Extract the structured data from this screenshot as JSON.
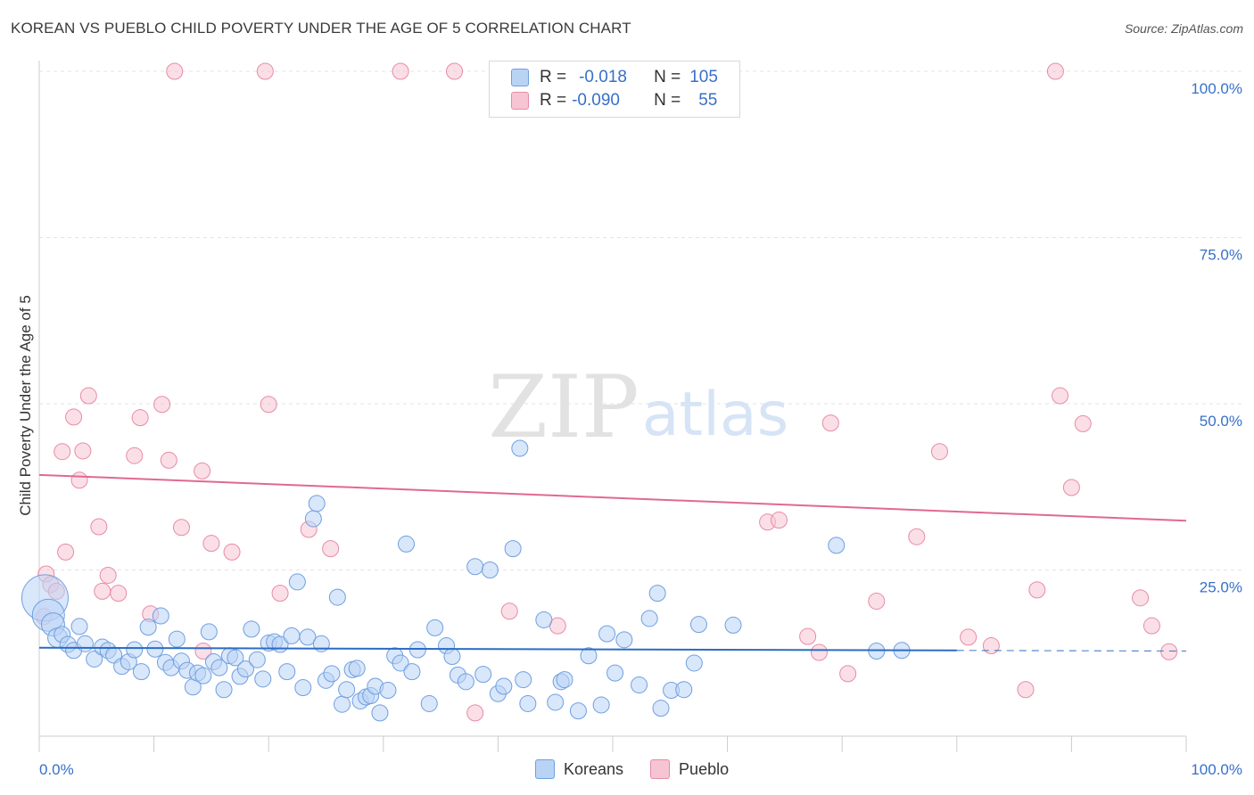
{
  "title": "KOREAN VS PUEBLO CHILD POVERTY UNDER THE AGE OF 5 CORRELATION CHART",
  "source": "Source: ZipAtlas.com",
  "watermark": {
    "zip": "ZIP",
    "atlas": "atlas"
  },
  "legend": {
    "r_label": "R =",
    "n_label": "N =",
    "rows": [
      {
        "r": "-0.018",
        "n": "105"
      },
      {
        "r": "-0.090",
        "n": "55"
      }
    ]
  },
  "bottom_legend": [
    "Koreans",
    "Pueblo"
  ],
  "colors": {
    "korean_fill": "#b9d3f5",
    "korean_stroke": "#6f9fe0",
    "korean_line": "#2b6cc4",
    "pueblo_fill": "#f7c4d3",
    "pueblo_stroke": "#e88aa8",
    "pueblo_line": "#e0698f",
    "tick_label": "#3870c8",
    "grid": "#e3e3e3"
  },
  "chart_data": {
    "type": "scatter",
    "title": "KOREAN VS PUEBLO CHILD POVERTY UNDER THE AGE OF 5 CORRELATION CHART",
    "xlabel": "",
    "ylabel": "Child Poverty Under the Age of 5",
    "xlim": [
      0,
      100
    ],
    "ylim": [
      0,
      100
    ],
    "x_tick_labels": [
      "0.0%",
      "100.0%"
    ],
    "y_ticks": [
      25,
      50,
      75,
      100
    ],
    "y_tick_labels": [
      "25.0%",
      "50.0%",
      "75.0%",
      "100.0%"
    ],
    "series": [
      {
        "name": "Koreans",
        "r": -0.018,
        "n": 105,
        "trend": {
          "x0": 0,
          "y0": 13.3,
          "x1": 80,
          "y1": 12.9,
          "dash_to": 100,
          "dash_y": 12.8
        },
        "points": [
          [
            0.5,
            20.8,
            26
          ],
          [
            0.8,
            18.2,
            18
          ],
          [
            1.2,
            16.8,
            13
          ],
          [
            1.6,
            14.8,
            11
          ],
          [
            2.0,
            15.3,
            9
          ],
          [
            2.5,
            13.8,
            9
          ],
          [
            3.0,
            12.9,
            9
          ],
          [
            3.5,
            16.5,
            9
          ],
          [
            4.0,
            13.9,
            9
          ],
          [
            4.8,
            11.6,
            9
          ],
          [
            5.5,
            13.4,
            9
          ],
          [
            6.0,
            12.9,
            9
          ],
          [
            6.5,
            12.2,
            9
          ],
          [
            7.2,
            10.5,
            9
          ],
          [
            7.8,
            11.2,
            9
          ],
          [
            8.3,
            13.0,
            9
          ],
          [
            8.9,
            9.7,
            9
          ],
          [
            9.5,
            16.4,
            9
          ],
          [
            10.1,
            13.1,
            9
          ],
          [
            10.6,
            18.1,
            9
          ],
          [
            11.0,
            11.1,
            9
          ],
          [
            11.5,
            10.3,
            9
          ],
          [
            12.0,
            14.6,
            9
          ],
          [
            12.4,
            11.3,
            9
          ],
          [
            12.9,
            9.9,
            9
          ],
          [
            13.4,
            7.4,
            9
          ],
          [
            13.8,
            9.5,
            9
          ],
          [
            14.3,
            9.1,
            9
          ],
          [
            14.8,
            15.7,
            9
          ],
          [
            15.2,
            11.2,
            9
          ],
          [
            15.7,
            10.3,
            9
          ],
          [
            16.1,
            7.0,
            9
          ],
          [
            16.6,
            12.1,
            9
          ],
          [
            17.1,
            11.8,
            9
          ],
          [
            17.5,
            9.0,
            9
          ],
          [
            18.0,
            10.1,
            9
          ],
          [
            18.5,
            16.1,
            9
          ],
          [
            19.0,
            11.5,
            9
          ],
          [
            19.5,
            8.6,
            9
          ],
          [
            20.0,
            14.0,
            9
          ],
          [
            20.5,
            14.2,
            9
          ],
          [
            21.0,
            13.8,
            9
          ],
          [
            21.6,
            9.7,
            9
          ],
          [
            22.0,
            15.1,
            9
          ],
          [
            22.5,
            23.2,
            9
          ],
          [
            23.0,
            7.3,
            9
          ],
          [
            23.4,
            14.9,
            9
          ],
          [
            23.9,
            32.7,
            9
          ],
          [
            24.2,
            35.0,
            9
          ],
          [
            24.6,
            13.9,
            9
          ],
          [
            25.0,
            8.4,
            9
          ],
          [
            25.5,
            9.4,
            9
          ],
          [
            26.0,
            20.9,
            9
          ],
          [
            26.4,
            4.8,
            9
          ],
          [
            26.8,
            7.0,
            9
          ],
          [
            27.3,
            10.0,
            9
          ],
          [
            27.7,
            10.2,
            9
          ],
          [
            28.0,
            5.3,
            9
          ],
          [
            28.5,
            5.9,
            9
          ],
          [
            28.9,
            6.1,
            9
          ],
          [
            29.3,
            7.5,
            9
          ],
          [
            29.7,
            3.5,
            9
          ],
          [
            30.4,
            6.9,
            9
          ],
          [
            31.0,
            12.1,
            9
          ],
          [
            31.5,
            11.0,
            9
          ],
          [
            32.0,
            28.9,
            9
          ],
          [
            32.5,
            9.7,
            9
          ],
          [
            33.0,
            13.0,
            9
          ],
          [
            34.0,
            4.9,
            9
          ],
          [
            34.5,
            16.3,
            9
          ],
          [
            35.5,
            13.6,
            9
          ],
          [
            36.0,
            12.0,
            9
          ],
          [
            36.5,
            9.2,
            9
          ],
          [
            37.2,
            8.2,
            9
          ],
          [
            38.0,
            25.5,
            9
          ],
          [
            38.7,
            9.3,
            9
          ],
          [
            39.3,
            25.0,
            9
          ],
          [
            40.0,
            6.4,
            9
          ],
          [
            40.5,
            7.5,
            9
          ],
          [
            41.3,
            28.2,
            9
          ],
          [
            41.9,
            43.3,
            9
          ],
          [
            42.2,
            8.5,
            9
          ],
          [
            42.6,
            4.9,
            9
          ],
          [
            44.0,
            17.5,
            9
          ],
          [
            45.0,
            5.1,
            9
          ],
          [
            45.5,
            8.2,
            9
          ],
          [
            45.8,
            8.5,
            9
          ],
          [
            47.0,
            3.8,
            9
          ],
          [
            47.9,
            12.1,
            9
          ],
          [
            49.0,
            4.7,
            9
          ],
          [
            49.5,
            15.4,
            9
          ],
          [
            50.2,
            9.5,
            9
          ],
          [
            51.0,
            14.5,
            9
          ],
          [
            52.3,
            7.7,
            9
          ],
          [
            53.2,
            17.7,
            9
          ],
          [
            53.9,
            21.5,
            9
          ],
          [
            54.2,
            4.2,
            9
          ],
          [
            55.1,
            6.9,
            9
          ],
          [
            56.2,
            7.0,
            9
          ],
          [
            57.1,
            11.0,
            9
          ],
          [
            57.5,
            16.8,
            9
          ],
          [
            60.5,
            16.7,
            9
          ],
          [
            69.5,
            28.7,
            9
          ],
          [
            73.0,
            12.8,
            9
          ],
          [
            75.2,
            12.9,
            9
          ]
        ]
      },
      {
        "name": "Pueblo",
        "r": -0.09,
        "n": 55,
        "trend": {
          "x0": 0,
          "y0": 39.3,
          "x1": 100,
          "y1": 32.4
        },
        "points": [
          [
            0.4,
            18.0,
            9
          ],
          [
            0.6,
            24.4,
            9
          ],
          [
            1.0,
            22.8,
            9
          ],
          [
            1.5,
            21.8,
            9
          ],
          [
            2.0,
            42.8,
            9
          ],
          [
            2.3,
            27.7,
            9
          ],
          [
            3.0,
            48.0,
            9
          ],
          [
            3.5,
            38.5,
            9
          ],
          [
            3.8,
            42.9,
            9
          ],
          [
            4.3,
            51.2,
            9
          ],
          [
            5.2,
            31.5,
            9
          ],
          [
            5.5,
            21.8,
            9
          ],
          [
            6.0,
            24.2,
            9
          ],
          [
            6.9,
            21.5,
            9
          ],
          [
            8.3,
            42.2,
            9
          ],
          [
            8.8,
            47.9,
            9
          ],
          [
            9.7,
            18.4,
            9
          ],
          [
            10.7,
            49.9,
            9
          ],
          [
            11.3,
            41.5,
            9
          ],
          [
            11.8,
            100.0,
            9
          ],
          [
            12.4,
            31.4,
            9
          ],
          [
            14.2,
            39.9,
            9
          ],
          [
            14.3,
            12.8,
            9
          ],
          [
            15.0,
            29.0,
            9
          ],
          [
            16.8,
            27.7,
            9
          ],
          [
            19.7,
            100.0,
            9
          ],
          [
            20.0,
            49.9,
            9
          ],
          [
            21.0,
            21.5,
            9
          ],
          [
            23.5,
            31.1,
            9
          ],
          [
            25.4,
            28.2,
            9
          ],
          [
            31.5,
            100.0,
            9
          ],
          [
            36.2,
            100.0,
            9
          ],
          [
            38.0,
            3.5,
            9
          ],
          [
            41.0,
            18.8,
            9
          ],
          [
            45.2,
            16.6,
            9
          ],
          [
            63.5,
            32.2,
            9
          ],
          [
            64.5,
            32.5,
            9
          ],
          [
            67.0,
            15.0,
            9
          ],
          [
            68.0,
            12.6,
            9
          ],
          [
            69.0,
            47.1,
            9
          ],
          [
            70.5,
            9.4,
            9
          ],
          [
            73.0,
            20.3,
            9
          ],
          [
            76.5,
            30.0,
            9
          ],
          [
            78.5,
            42.8,
            9
          ],
          [
            81.0,
            14.9,
            9
          ],
          [
            83.0,
            13.6,
            9
          ],
          [
            86.0,
            7.0,
            9
          ],
          [
            87.0,
            22.0,
            9
          ],
          [
            88.6,
            100.0,
            9
          ],
          [
            89.0,
            51.2,
            9
          ],
          [
            90.0,
            37.4,
            9
          ],
          [
            91.0,
            47.0,
            9
          ],
          [
            96.0,
            20.8,
            9
          ],
          [
            97.0,
            16.6,
            9
          ],
          [
            98.5,
            12.7,
            9
          ]
        ]
      }
    ]
  }
}
